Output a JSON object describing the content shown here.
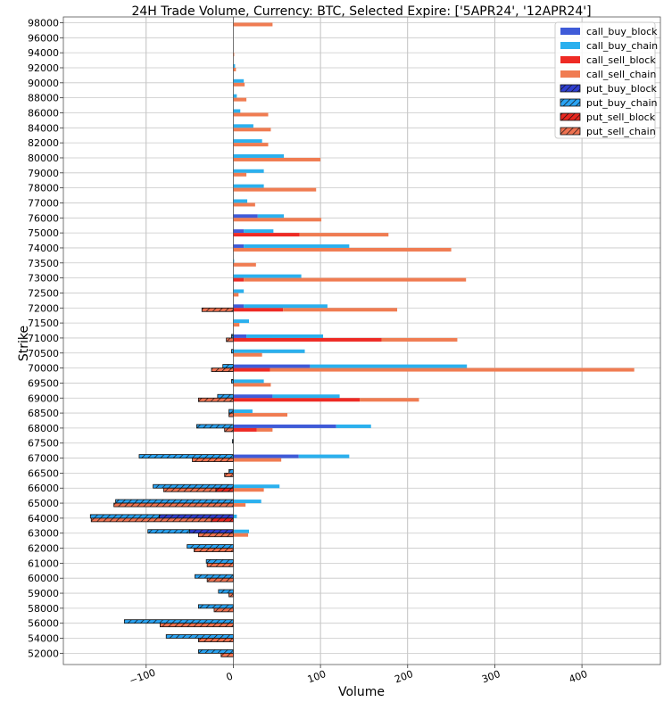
{
  "chart_data": {
    "type": "bar",
    "orientation": "horizontal",
    "title": "24H Trade Volume, Currency: BTC, Selected Expire: ['5APR24', '12APR24']",
    "xlabel": "Volume",
    "ylabel": "Strike",
    "xlim": [
      -195,
      490
    ],
    "xticks": [
      -100,
      0,
      100,
      200,
      300,
      400
    ],
    "xtick_labels": [
      "−100",
      "0",
      "100",
      "200",
      "300",
      "400"
    ],
    "grid": true,
    "legend_position": "top-right",
    "categories": [
      "98000",
      "96000",
      "94000",
      "92000",
      "90000",
      "88000",
      "86000",
      "84000",
      "82000",
      "80000",
      "79000",
      "78000",
      "77000",
      "76000",
      "75000",
      "74000",
      "73500",
      "73000",
      "72500",
      "72000",
      "71500",
      "71000",
      "70500",
      "70000",
      "69500",
      "69000",
      "68500",
      "68000",
      "67500",
      "67000",
      "66500",
      "66000",
      "65000",
      "64000",
      "63000",
      "62000",
      "61000",
      "60000",
      "59000",
      "58000",
      "56000",
      "54000",
      "52000"
    ],
    "series": [
      {
        "name": "call_buy_block",
        "color": "#3f5bd8",
        "hatch": false,
        "stack": "upper",
        "values": [
          0,
          0,
          0,
          0,
          0,
          0,
          0,
          0,
          0,
          0,
          0,
          0,
          0,
          28,
          12,
          12,
          0,
          0,
          0,
          12,
          0,
          15,
          0,
          88,
          0,
          45,
          0,
          118,
          0,
          75,
          0,
          0,
          0,
          0,
          0,
          0,
          0,
          0,
          0,
          0,
          0,
          0,
          0
        ]
      },
      {
        "name": "call_buy_chain",
        "color": "#2bb0ee",
        "hatch": false,
        "stack": "upper",
        "values": [
          0,
          0,
          0,
          2,
          12,
          4,
          8,
          23,
          33,
          58,
          35,
          35,
          16,
          30,
          34,
          121,
          1,
          78,
          12,
          96,
          18,
          88,
          82,
          180,
          35,
          77,
          22,
          40,
          0,
          58,
          0,
          53,
          32,
          4,
          18,
          0,
          0,
          0,
          0,
          0,
          0,
          0,
          0
        ]
      },
      {
        "name": "call_sell_block",
        "color": "#ee2a24",
        "hatch": false,
        "stack": "lower",
        "values": [
          0,
          0,
          0,
          0,
          0,
          0,
          0,
          0,
          0,
          0,
          0,
          0,
          0,
          0,
          76,
          0,
          0,
          12,
          0,
          57,
          0,
          170,
          0,
          42,
          0,
          145,
          0,
          27,
          0,
          0,
          0,
          0,
          0,
          0,
          0,
          0,
          0,
          0,
          0,
          0,
          0,
          0,
          0
        ]
      },
      {
        "name": "call_sell_chain",
        "color": "#f07c52",
        "hatch": false,
        "stack": "lower",
        "values": [
          45,
          0,
          1,
          3,
          13,
          15,
          40,
          43,
          40,
          100,
          15,
          95,
          25,
          101,
          102,
          250,
          26,
          255,
          6,
          131,
          7,
          87,
          33,
          418,
          43,
          68,
          62,
          18,
          0,
          55,
          0,
          35,
          14,
          0,
          17,
          0,
          0,
          0,
          0,
          0,
          0,
          0,
          0
        ]
      },
      {
        "name": "put_buy_block",
        "color": "#2f3fd0",
        "hatch": true,
        "stack": "upper",
        "values": [
          0,
          0,
          0,
          0,
          0,
          0,
          0,
          0,
          0,
          0,
          0,
          0,
          0,
          0,
          0,
          0,
          0,
          0,
          0,
          0,
          0,
          0,
          0,
          0,
          0,
          0,
          0,
          0,
          0,
          0,
          0,
          0,
          0,
          -85,
          -50,
          0,
          0,
          0,
          0,
          0,
          0,
          0,
          0
        ]
      },
      {
        "name": "put_buy_chain",
        "color": "#2aa4f4",
        "hatch": true,
        "stack": "upper",
        "values": [
          0,
          0,
          0,
          0,
          0,
          0,
          0,
          0,
          0,
          0,
          0,
          0,
          0,
          0,
          0,
          0,
          0,
          0,
          0,
          0,
          0,
          -2,
          -2,
          -12,
          -2,
          -18,
          -5,
          -42,
          -1,
          -108,
          -5,
          -92,
          -135,
          -79,
          -48,
          -53,
          -31,
          -44,
          -17,
          -40,
          -125,
          -77,
          -40
        ]
      },
      {
        "name": "put_sell_block",
        "color": "#e8261e",
        "hatch": true,
        "stack": "lower",
        "values": [
          0,
          0,
          0,
          0,
          0,
          0,
          0,
          0,
          0,
          0,
          0,
          0,
          0,
          0,
          0,
          0,
          0,
          0,
          0,
          0,
          0,
          0,
          0,
          0,
          0,
          0,
          0,
          0,
          0,
          0,
          0,
          -20,
          0,
          -25,
          0,
          0,
          0,
          0,
          0,
          0,
          0,
          0,
          0
        ]
      },
      {
        "name": "put_sell_chain",
        "color": "#ee7251",
        "hatch": true,
        "stack": "lower",
        "values": [
          0,
          0,
          0,
          0,
          0,
          0,
          0,
          0,
          0,
          0,
          0,
          0,
          0,
          0,
          0,
          0,
          0,
          0,
          0,
          -36,
          0,
          -8,
          0,
          -25,
          0,
          -40,
          -5,
          -10,
          0,
          -47,
          -10,
          -60,
          -137,
          -138,
          -40,
          -45,
          -30,
          -30,
          -5,
          -22,
          -84,
          -40,
          -14
        ]
      }
    ]
  }
}
